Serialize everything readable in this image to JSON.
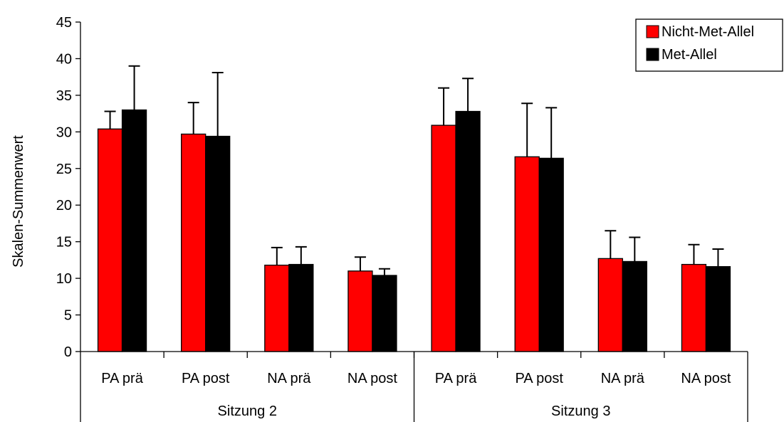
{
  "chart_data": {
    "type": "bar",
    "title": "",
    "xlabel": "",
    "ylabel": "Skalen-Summenwert",
    "ylim": [
      0,
      45
    ],
    "yticks": [
      0,
      5,
      10,
      15,
      20,
      25,
      30,
      35,
      40,
      45
    ],
    "grid": false,
    "legend_position": "top-right",
    "categories": [
      "PA prä",
      "PA post",
      "NA prä",
      "NA post",
      "PA prä",
      "PA post",
      "NA prä",
      "NA post"
    ],
    "groups": [
      {
        "label": "Sitzung 2",
        "category_indices": [
          0,
          1,
          2,
          3
        ]
      },
      {
        "label": "Sitzung 3",
        "category_indices": [
          4,
          5,
          6,
          7
        ]
      }
    ],
    "series": [
      {
        "name": "Nicht-Met-Allel",
        "color": "#ff0000",
        "values": [
          30.4,
          29.7,
          11.8,
          11.0,
          30.9,
          26.6,
          12.7,
          11.9
        ],
        "error_upper": [
          32.8,
          34.0,
          14.2,
          12.9,
          36.0,
          33.9,
          16.5,
          14.6
        ]
      },
      {
        "name": "Met-Allel",
        "color": "#000000",
        "values": [
          33.0,
          29.4,
          11.9,
          10.4,
          32.8,
          26.4,
          12.3,
          11.6
        ],
        "error_upper": [
          39.0,
          38.1,
          14.3,
          11.3,
          37.3,
          33.3,
          15.6,
          14.0
        ]
      }
    ]
  }
}
